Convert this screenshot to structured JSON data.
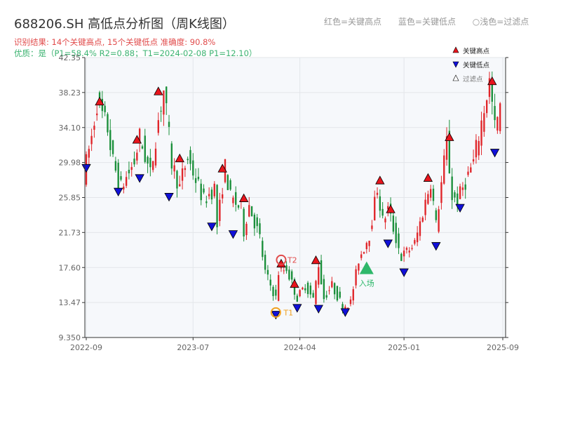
{
  "title": "688206.SH 高低点分析图（周K线图）",
  "result_line": "识别结果: 14个关键高点, 15个关键低点   准确度: 90.8%",
  "quality_line": "优质：是（P1=58.4%  R2=0.88；T1=2024-02-08 P1=12.10）",
  "top_legend": [
    "红色=关键高点",
    "蓝色=关键低点",
    "○浅色=过滤点"
  ],
  "colors": {
    "up": "#e0252a",
    "down": "#1a8f3a",
    "high": "#e8141c",
    "low": "#1010d8",
    "grid": "#e3e6ea",
    "plot_bg": "#f6f8fb",
    "orange": "#f0a020"
  },
  "chart_data": {
    "type": "candlestick",
    "y_ticks": [
      "9.350",
      "13.47",
      "17.60",
      "21.73",
      "25.85",
      "29.98",
      "34.10",
      "38.23",
      "42.35"
    ],
    "ylim": [
      9.35,
      42.35
    ],
    "x_ticks": [
      "2022-09",
      "2023-07",
      "2024-04",
      "2025-01",
      "2025-09"
    ],
    "n_bars": 156,
    "x_tick_index": [
      0,
      40,
      80,
      119,
      156
    ],
    "legend": [
      "关键高点",
      "关键低点",
      "过滤点"
    ],
    "anchors": [
      [
        0,
        28.5
      ],
      [
        3,
        33
      ],
      [
        5,
        37
      ],
      [
        9,
        34
      ],
      [
        11,
        30
      ],
      [
        14,
        27
      ],
      [
        19,
        30
      ],
      [
        21,
        33
      ],
      [
        25,
        28.5
      ],
      [
        28,
        35
      ],
      [
        30,
        38.5
      ],
      [
        33,
        30
      ],
      [
        36,
        27
      ],
      [
        37,
        28.5
      ],
      [
        39,
        30.5
      ],
      [
        42,
        28
      ],
      [
        45,
        25.5
      ],
      [
        49,
        27
      ],
      [
        50,
        22.5
      ],
      [
        53,
        29.5
      ],
      [
        55,
        25.8
      ],
      [
        59,
        24.5
      ],
      [
        60,
        22
      ],
      [
        62,
        25
      ],
      [
        66,
        21
      ],
      [
        68,
        17
      ],
      [
        72,
        14
      ],
      [
        73,
        17
      ],
      [
        76,
        17.5
      ],
      [
        80,
        14
      ],
      [
        83,
        15.5
      ],
      [
        86,
        13.8
      ],
      [
        88,
        18
      ],
      [
        90,
        14
      ],
      [
        93,
        15.5
      ],
      [
        97,
        13
      ],
      [
        100,
        13.5
      ],
      [
        103,
        18.5
      ],
      [
        107,
        21.5
      ],
      [
        110,
        27
      ],
      [
        112,
        23
      ],
      [
        114,
        24.5
      ],
      [
        119,
        18.8
      ],
      [
        124,
        20.4
      ],
      [
        130,
        27.8
      ],
      [
        132,
        22.5
      ],
      [
        136,
        32.5
      ],
      [
        138,
        26
      ],
      [
        140,
        25.5
      ],
      [
        146,
        30
      ],
      [
        152,
        39.5
      ],
      [
        154,
        34
      ],
      [
        156,
        36
      ]
    ],
    "key_highs": [
      {
        "i": 5,
        "v": 36.5
      },
      {
        "i": 19,
        "v": 32
      },
      {
        "i": 27,
        "v": 37.7
      },
      {
        "i": 35,
        "v": 29.8
      },
      {
        "i": 51,
        "v": 28.6
      },
      {
        "i": 59,
        "v": 25.1
      },
      {
        "i": 73,
        "v": 17.4
      },
      {
        "i": 78,
        "v": 15
      },
      {
        "i": 86,
        "v": 17.8
      },
      {
        "i": 110,
        "v": 27.2
      },
      {
        "i": 114,
        "v": 23.8
      },
      {
        "i": 128,
        "v": 27.5
      },
      {
        "i": 136,
        "v": 32.3
      },
      {
        "i": 152,
        "v": 38.9
      }
    ],
    "key_lows": [
      {
        "i": 0,
        "v": 30
      },
      {
        "i": 12,
        "v": 27.2
      },
      {
        "i": 20,
        "v": 28.8
      },
      {
        "i": 31,
        "v": 26.6
      },
      {
        "i": 47,
        "v": 23.1
      },
      {
        "i": 55,
        "v": 22.2
      },
      {
        "i": 71,
        "v": 12.7
      },
      {
        "i": 79,
        "v": 13.5
      },
      {
        "i": 87,
        "v": 13.4
      },
      {
        "i": 97,
        "v": 13
      },
      {
        "i": 113,
        "v": 21.1
      },
      {
        "i": 119,
        "v": 17.7
      },
      {
        "i": 131,
        "v": 20.8
      },
      {
        "i": 140,
        "v": 25.3
      },
      {
        "i": 153,
        "v": 31.8
      }
    ],
    "t1": {
      "i": 71,
      "v": 12.3,
      "label": "T1"
    },
    "t2": {
      "i": 73,
      "v": 18.5,
      "label": "T2"
    },
    "entry": {
      "i": 105,
      "v": 17.4,
      "label": "入场"
    }
  }
}
